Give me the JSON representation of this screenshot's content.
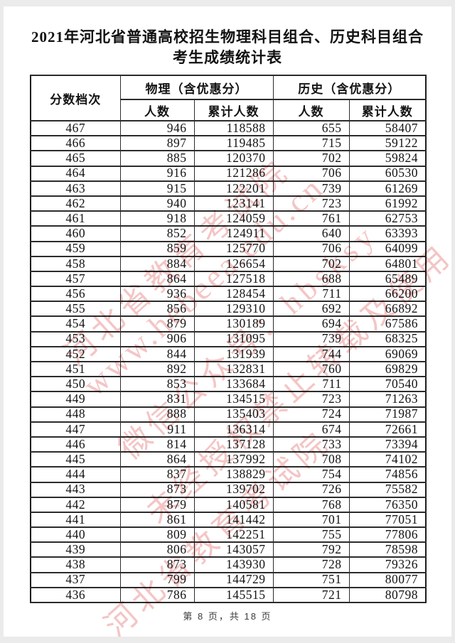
{
  "page": {
    "title_line1": "2021年河北省普通高校招生物理科目组合、历史科目组合",
    "title_line2": "考生成绩统计表",
    "footer": "第 8 页，共 18 页"
  },
  "table": {
    "headers": {
      "score_tier": "分数档次",
      "physics_group": "物理（含优惠分）",
      "history_group": "历史（含优惠分）",
      "count": "人数",
      "cumulative": "累计人数"
    },
    "rows": [
      [
        "467",
        "946",
        "118588",
        "655",
        "58407"
      ],
      [
        "466",
        "897",
        "119485",
        "715",
        "59122"
      ],
      [
        "465",
        "885",
        "120370",
        "702",
        "59824"
      ],
      [
        "464",
        "916",
        "121286",
        "706",
        "60530"
      ],
      [
        "463",
        "915",
        "122201",
        "739",
        "61269"
      ],
      [
        "462",
        "940",
        "123141",
        "723",
        "61992"
      ],
      [
        "461",
        "918",
        "124059",
        "761",
        "62753"
      ],
      [
        "460",
        "852",
        "124911",
        "640",
        "63393"
      ],
      [
        "459",
        "859",
        "125770",
        "706",
        "64099"
      ],
      [
        "458",
        "884",
        "126654",
        "702",
        "64801"
      ],
      [
        "457",
        "864",
        "127518",
        "688",
        "65489"
      ],
      [
        "456",
        "936",
        "128454",
        "711",
        "66200"
      ],
      [
        "455",
        "856",
        "129310",
        "692",
        "66892"
      ],
      [
        "454",
        "879",
        "130189",
        "694",
        "67586"
      ],
      [
        "453",
        "906",
        "131095",
        "739",
        "68325"
      ],
      [
        "452",
        "844",
        "131939",
        "744",
        "69069"
      ],
      [
        "451",
        "892",
        "132831",
        "760",
        "69829"
      ],
      [
        "450",
        "853",
        "133684",
        "711",
        "70540"
      ],
      [
        "449",
        "831",
        "134515",
        "723",
        "71263"
      ],
      [
        "448",
        "888",
        "135403",
        "724",
        "71987"
      ],
      [
        "447",
        "911",
        "136314",
        "674",
        "72661"
      ],
      [
        "446",
        "814",
        "137128",
        "733",
        "73394"
      ],
      [
        "445",
        "864",
        "137992",
        "708",
        "74102"
      ],
      [
        "444",
        "837",
        "138829",
        "754",
        "74856"
      ],
      [
        "443",
        "873",
        "139702",
        "726",
        "75582"
      ],
      [
        "442",
        "879",
        "140581",
        "768",
        "76350"
      ],
      [
        "441",
        "861",
        "141442",
        "701",
        "77051"
      ],
      [
        "440",
        "809",
        "142251",
        "755",
        "77806"
      ],
      [
        "439",
        "806",
        "143057",
        "792",
        "78598"
      ],
      [
        "438",
        "873",
        "143930",
        "728",
        "79326"
      ],
      [
        "437",
        "799",
        "144729",
        "751",
        "80077"
      ],
      [
        "436",
        "786",
        "145515",
        "721",
        "80798"
      ]
    ]
  },
  "watermark": {
    "color": "rgba(228,110,110,0.40)",
    "lines": [
      "河北省教育考试院",
      "www.hebeea.edu.cn",
      "微信公众号：hbsksy",
      "未经授权禁止转载及使用",
      "河北省教育考试院"
    ]
  }
}
